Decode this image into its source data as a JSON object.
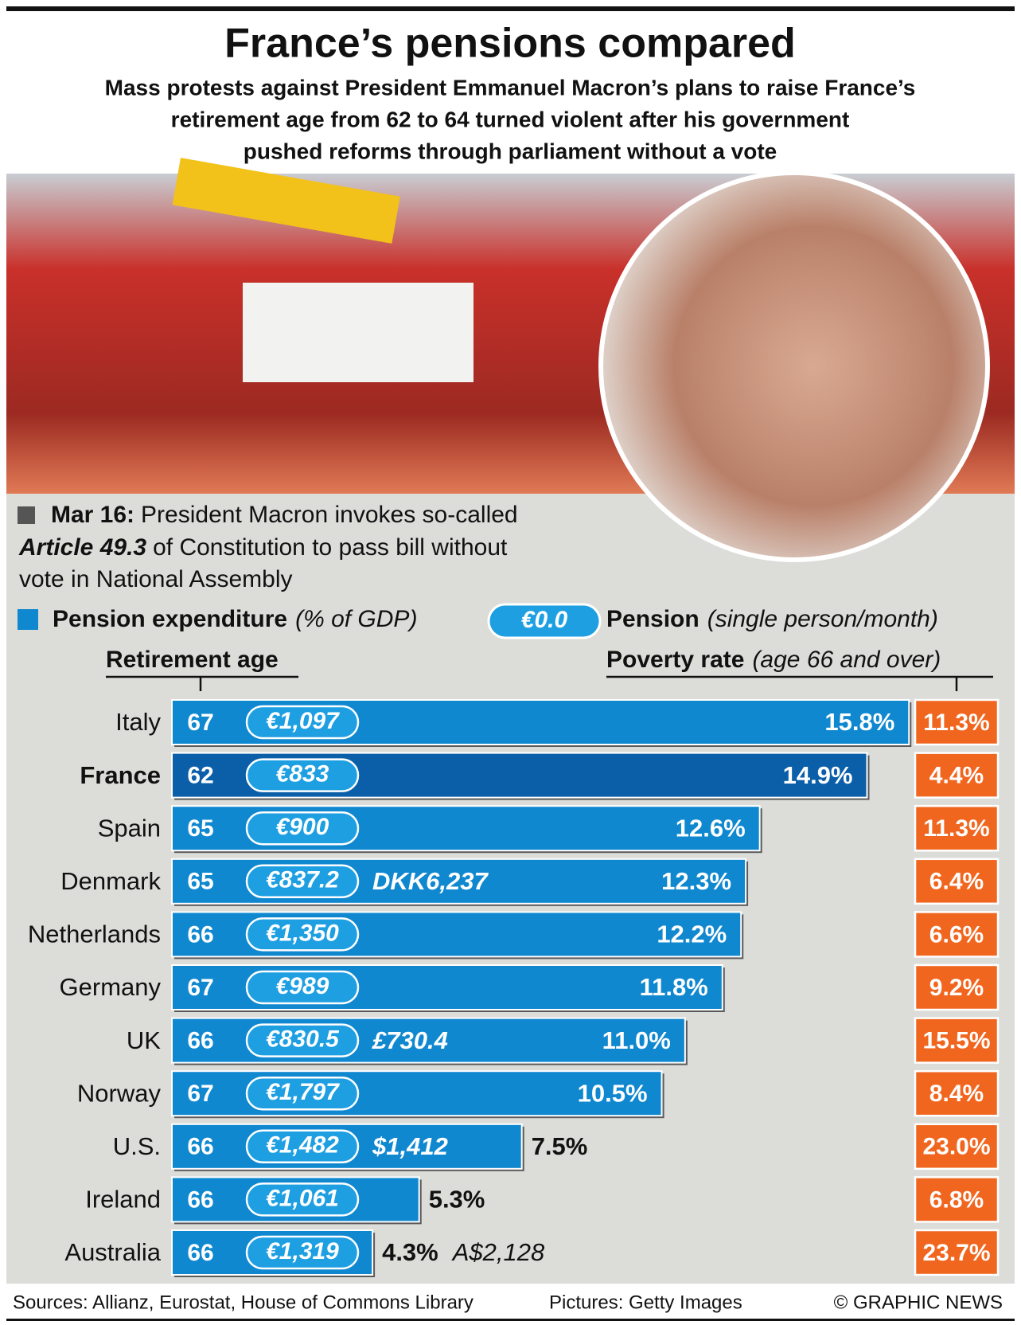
{
  "title": "France’s pensions compared",
  "subtitle": [
    "Mass protests against President Emmanuel Macron’s plans to raise France’s",
    "retirement age from 62 to 64 turned violent after his government",
    "pushed reforms through parliament without a vote"
  ],
  "note": {
    "date": "Mar 16:",
    "text_1": "President Macron invokes so-called",
    "article": "Article 49.3",
    "text_2": "of Constitution to pass bill without",
    "text_3": "vote in National Assembly"
  },
  "chart_data": {
    "type": "bar",
    "orientation": "horizontal",
    "categories": [
      "Italy",
      "France",
      "Spain",
      "Denmark",
      "Netherlands",
      "Germany",
      "UK",
      "Norway",
      "U.S.",
      "Ireland",
      "Australia"
    ],
    "highlight": {
      "index": 1,
      "color": "#0b5fa9"
    },
    "xlim": [
      0,
      16
    ],
    "series": [
      {
        "name": "Pension expenditure",
        "unit_label": "(% of GDP)",
        "color": "#1088d0",
        "values": [
          15.8,
          14.9,
          12.6,
          12.3,
          12.2,
          11.8,
          11.0,
          10.5,
          7.5,
          5.3,
          4.3
        ],
        "value_labels": [
          "15.8%",
          "14.9%",
          "12.6%",
          "12.3%",
          "12.2%",
          "11.8%",
          "11.0%",
          "10.5%",
          "7.5%",
          "5.3%",
          "4.3%"
        ]
      }
    ],
    "retirement_age": {
      "label": "Retirement age",
      "values": [
        67,
        62,
        65,
        65,
        66,
        67,
        66,
        67,
        66,
        66,
        66
      ]
    },
    "pension": {
      "label": "Pension",
      "unit_label": "(single person/month)",
      "legend_sample": "€0.0",
      "color": "#1e9fe2",
      "values": [
        1097,
        833,
        900,
        837.2,
        1350,
        989,
        830.5,
        1797,
        1482,
        1061,
        1319
      ],
      "value_labels": [
        "€1,097",
        "€833",
        "€900",
        "€837.2",
        "€1,350",
        "€989",
        "€830.5",
        "€1,797",
        "€1,482",
        "€1,061",
        "€1,319"
      ],
      "local_labels": [
        null,
        null,
        null,
        "DKK6,237",
        null,
        null,
        "£730.4",
        null,
        "$1,412",
        null,
        "A$2,128"
      ]
    },
    "poverty_rate": {
      "label": "Poverty rate",
      "unit_label": "(age 66 and over)",
      "color": "#f1661f",
      "values": [
        11.3,
        4.4,
        11.3,
        6.4,
        6.6,
        9.2,
        15.5,
        8.4,
        23.0,
        6.8,
        23.7
      ],
      "value_labels": [
        "11.3%",
        "4.4%",
        "11.3%",
        "6.4%",
        "6.6%",
        "9.2%",
        "15.5%",
        "8.4%",
        "23.0%",
        "6.8%",
        "23.7%"
      ]
    }
  },
  "footer": {
    "sources": "Sources: Allianz, Eurostat, House of Commons Library",
    "pictures": "Pictures: Getty Images",
    "credit": "© GRAPHIC NEWS"
  }
}
